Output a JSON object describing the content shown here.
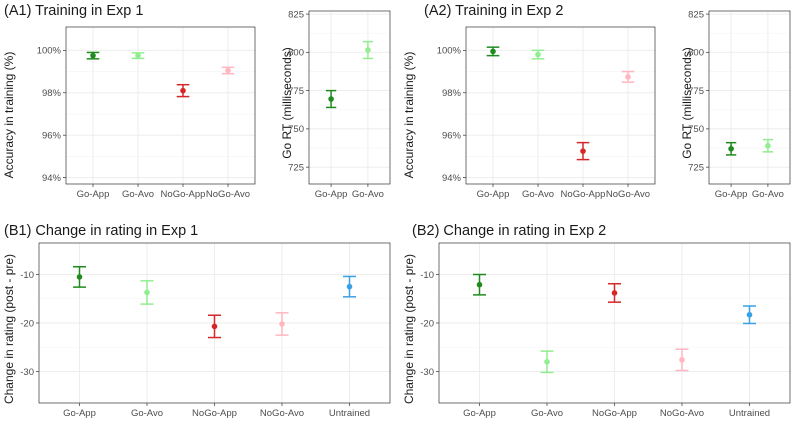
{
  "chart_data": [
    {
      "id": "A1",
      "type": "scatter",
      "title": "(A1) Training in Exp 1",
      "xlabel": "",
      "ylabel": "Accuracy in training (%)",
      "categories": [
        "Go-App",
        "Go-Avo",
        "NoGo-App",
        "NoGo-Avo"
      ],
      "values": [
        99.75,
        99.75,
        98.1,
        99.05
      ],
      "err_low": [
        99.6,
        99.62,
        97.82,
        98.9
      ],
      "err_high": [
        99.9,
        99.88,
        98.38,
        99.2
      ],
      "colors": [
        "#1f8b1f",
        "#90ee90",
        "#d62728",
        "#ffb6c1"
      ],
      "ylim": [
        93.7,
        101.1
      ],
      "yticks": [
        94,
        96,
        98,
        100
      ],
      "ytick_labels": [
        "94%",
        "96%",
        "98%",
        "100%"
      ],
      "grid": true
    },
    {
      "id": "A1rt",
      "type": "scatter",
      "title": "",
      "xlabel": "",
      "ylabel": "Go RT (milliseconds)",
      "categories": [
        "Go-App",
        "Go-Avo"
      ],
      "values": [
        769.5,
        801.5
      ],
      "err_low": [
        764,
        796
      ],
      "err_high": [
        775,
        807
      ],
      "colors": [
        "#1f8b1f",
        "#90ee90"
      ],
      "ylim": [
        714,
        827
      ],
      "yticks": [
        725,
        750,
        775,
        800,
        825
      ],
      "ytick_labels": [
        "725",
        "750",
        "775",
        "800",
        "825"
      ],
      "grid": true
    },
    {
      "id": "A2",
      "type": "scatter",
      "title": "(A2) Training in Exp 2",
      "xlabel": "",
      "ylabel": "Accuracy in training (%)",
      "categories": [
        "Go-App",
        "Go-Avo",
        "NoGo-App",
        "NoGo-Avo"
      ],
      "values": [
        99.95,
        99.8,
        95.25,
        98.75
      ],
      "err_low": [
        99.75,
        99.6,
        94.85,
        98.5
      ],
      "err_high": [
        100.15,
        100.0,
        95.65,
        99.0
      ],
      "colors": [
        "#1f8b1f",
        "#90ee90",
        "#d62728",
        "#ffb6c1"
      ],
      "ylim": [
        93.7,
        101.1
      ],
      "yticks": [
        94,
        96,
        98,
        100
      ],
      "ytick_labels": [
        "94%",
        "96%",
        "98%",
        "100%"
      ],
      "grid": true
    },
    {
      "id": "A2rt",
      "type": "scatter",
      "title": "",
      "xlabel": "",
      "ylabel": "Go RT (milliseconds)",
      "categories": [
        "Go-App",
        "Go-Avo"
      ],
      "values": [
        737,
        739
      ],
      "err_low": [
        733,
        735
      ],
      "err_high": [
        741,
        743
      ],
      "colors": [
        "#1f8b1f",
        "#90ee90"
      ],
      "ylim": [
        714,
        827
      ],
      "yticks": [
        725,
        750,
        775,
        800,
        825
      ],
      "ytick_labels": [
        "725",
        "750",
        "775",
        "800",
        "825"
      ],
      "grid": true
    },
    {
      "id": "B1",
      "type": "scatter",
      "title": "(B1) Change in rating in Exp 1",
      "xlabel": "",
      "ylabel": "Change in rating (post - pre)",
      "categories": [
        "Go-App",
        "Go-Avo",
        "NoGo-App",
        "NoGo-Avo",
        "Untrained"
      ],
      "values": [
        -10.5,
        -13.7,
        -20.7,
        -20.2,
        -12.5
      ],
      "err_low": [
        -12.6,
        -16.1,
        -23.0,
        -22.5,
        -14.6
      ],
      "err_high": [
        -8.4,
        -11.3,
        -18.4,
        -17.9,
        -10.4
      ],
      "colors": [
        "#1f8b1f",
        "#90ee90",
        "#d62728",
        "#ffb6c1",
        "#3aa0e6"
      ],
      "ylim": [
        -36.5,
        -3.5
      ],
      "yticks": [
        -30,
        -20,
        -10
      ],
      "ytick_labels": [
        "-30",
        "-20",
        "-10"
      ],
      "grid": true
    },
    {
      "id": "B2",
      "type": "scatter",
      "title": "(B2) Change in rating in Exp 2",
      "xlabel": "",
      "ylabel": "Change in rating (post - pre)",
      "categories": [
        "Go-App",
        "Go-Avo",
        "NoGo-App",
        "NoGo-Avo",
        "Untrained"
      ],
      "values": [
        -12.1,
        -28.0,
        -13.8,
        -27.6,
        -18.3
      ],
      "err_low": [
        -14.2,
        -30.2,
        -15.7,
        -29.8,
        -20.1
      ],
      "err_high": [
        -10.0,
        -25.8,
        -11.9,
        -25.4,
        -16.5
      ],
      "colors": [
        "#1f8b1f",
        "#90ee90",
        "#d62728",
        "#ffb6c1",
        "#3aa0e6"
      ],
      "ylim": [
        -36.5,
        -3.5
      ],
      "yticks": [
        -30,
        -20,
        -10
      ],
      "ytick_labels": [
        "-30",
        "-20",
        "-10"
      ],
      "grid": true
    }
  ]
}
